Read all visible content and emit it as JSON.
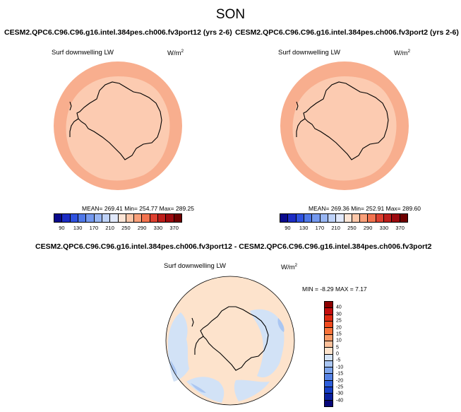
{
  "title": "SON",
  "chart_data": [
    {
      "type": "heatmap",
      "title": "CESM2.QPC6.C96.C96.g16.intel.384pes.ch006.fv3port12 (yrs 2-6)",
      "variable": "Surf downwelling LW",
      "units_base": "W/m",
      "units_exp": "2",
      "projection": "polar stereographic (south pole)",
      "stats": "MEAN= 269.41  Min= 254.77  Max= 289.25",
      "mean": 269.41,
      "min": 254.77,
      "max": 289.25,
      "colorbar": {
        "orientation": "horizontal",
        "levels": [
          90,
          110,
          130,
          150,
          170,
          190,
          210,
          230,
          250,
          270,
          290,
          310,
          330,
          350,
          370
        ],
        "tick_labels": [
          "90",
          "130",
          "170",
          "210",
          "250",
          "290",
          "330",
          "370"
        ],
        "colors": [
          "#0a0a8c",
          "#1c2cc4",
          "#2f52df",
          "#4f78e8",
          "#7499ef",
          "#98b6f3",
          "#bed2f8",
          "#e1e9fb",
          "#fce5d6",
          "#fcc7a9",
          "#f9a07a",
          "#f2734f",
          "#dc4030",
          "#bd1e1b",
          "#9c0a0f",
          "#6e0000"
        ]
      },
      "field_colors": {
        "ocean_outer": "#f8ae8e",
        "inner": "#fccbb1"
      }
    },
    {
      "type": "heatmap",
      "title": "CESM2.QPC6.C96.C96.g16.intel.384pes.ch006.fv3port2 (yrs 2-6)",
      "variable": "Surf downwelling LW",
      "units_base": "W/m",
      "units_exp": "2",
      "projection": "polar stereographic (south pole)",
      "stats": "MEAN= 269.36  Min= 252.91  Max= 289.60",
      "mean": 269.36,
      "min": 252.91,
      "max": 289.6,
      "colorbar": {
        "orientation": "horizontal",
        "levels": [
          90,
          110,
          130,
          150,
          170,
          190,
          210,
          230,
          250,
          270,
          290,
          310,
          330,
          350,
          370
        ],
        "tick_labels": [
          "90",
          "130",
          "170",
          "210",
          "250",
          "290",
          "330",
          "370"
        ],
        "colors": [
          "#0a0a8c",
          "#1c2cc4",
          "#2f52df",
          "#4f78e8",
          "#7499ef",
          "#98b6f3",
          "#bed2f8",
          "#e1e9fb",
          "#fce5d6",
          "#fcc7a9",
          "#f9a07a",
          "#f2734f",
          "#dc4030",
          "#bd1e1b",
          "#9c0a0f",
          "#6e0000"
        ]
      },
      "field_colors": {
        "ocean_outer": "#f8ae8e",
        "inner": "#fccbb1"
      }
    },
    {
      "type": "heatmap",
      "title": "CESM2.QPC6.C96.C96.g16.intel.384pes.ch006.fv3port12 - CESM2.QPC6.C96.C96.g16.intel.384pes.ch006.fv3port2",
      "variable": "Surf downwelling LW",
      "units_base": "W/m",
      "units_exp": "2",
      "projection": "polar stereographic (south pole)",
      "stats": "MIN = -8.29 MAX =  7.17",
      "min": -8.29,
      "max": 7.17,
      "colorbar": {
        "orientation": "vertical",
        "levels": [
          -40,
          -30,
          -25,
          -20,
          -15,
          -10,
          -5,
          0,
          5,
          10,
          15,
          20,
          25,
          30,
          40
        ],
        "tick_labels": [
          "40",
          "30",
          "25",
          "20",
          "15",
          "10",
          "5",
          "0",
          "-5",
          "-10",
          "-15",
          "-20",
          "-25",
          "-30",
          "-40"
        ],
        "colors_top_to_bottom": [
          "#8c0000",
          "#c40e0e",
          "#e02a12",
          "#f04a1e",
          "#f8733a",
          "#fa9a66",
          "#fcc09a",
          "#fde3cc",
          "#d2e2f6",
          "#aac6f2",
          "#7ea5ec",
          "#5683e6",
          "#2e5fdc",
          "#1740c8",
          "#0a20a0",
          "#08087a"
        ]
      },
      "field_colors": {
        "positive": "#fde3cc",
        "negative": "#d2e2f6",
        "ring": "#aac6f2"
      }
    }
  ]
}
